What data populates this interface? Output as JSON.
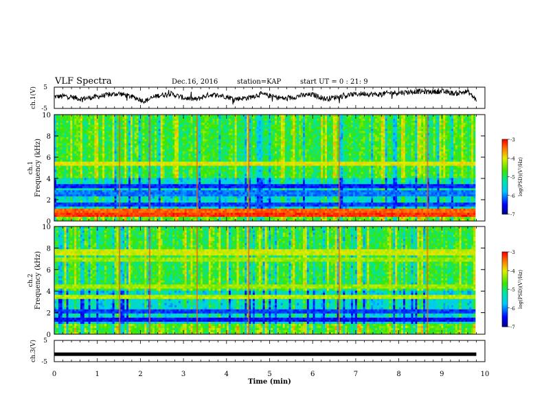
{
  "header": {
    "title": "VLF Spectra",
    "date": "Dec.16, 2016",
    "station": "station=KAP",
    "start": "start UT =  0 : 21: 9"
  },
  "chart_data": [
    {
      "type": "line",
      "panel": "ch1-waveform",
      "ylabel": "ch.1(V)",
      "ylim": [
        -5,
        5
      ],
      "yticks": [
        "5",
        "-5"
      ],
      "xlim": [
        0,
        10
      ],
      "x": [
        0,
        0.3,
        0.6,
        0.9,
        1.2,
        1.5,
        1.8,
        2.1,
        2.4,
        2.7,
        3.0,
        3.3,
        3.6,
        3.9,
        4.2,
        4.5,
        4.8,
        5.1,
        5.4,
        5.7,
        6.0,
        6.3,
        6.6,
        6.9,
        7.2,
        7.5,
        7.8,
        8.1,
        8.4,
        8.7,
        9.0,
        9.3,
        9.6,
        9.8
      ],
      "y": [
        0.5,
        0.8,
        -0.5,
        0.2,
        1.2,
        2.0,
        0.5,
        -1.5,
        1.0,
        2.0,
        0.0,
        -0.8,
        1.5,
        1.0,
        -0.5,
        0.0,
        1.8,
        0.5,
        -0.5,
        1.0,
        1.5,
        -0.5,
        0.5,
        1.5,
        2.0,
        1.5,
        2.3,
        2.5,
        3.0,
        2.8,
        3.0,
        2.0,
        3.0,
        -1.0
      ]
    },
    {
      "type": "heatmap",
      "panel": "ch1-spectrogram",
      "ylabel": "ch.1\nFrequency (kHz)",
      "xlim": [
        0,
        10
      ],
      "ylim": [
        0,
        10
      ],
      "yticks": [
        0,
        2,
        4,
        6,
        8,
        10
      ],
      "colorbar": {
        "label": "log(PSD)(V²/Hz)",
        "range": [
          -7,
          -3
        ],
        "ticks": [
          "-3",
          "-4",
          "-5",
          "-6",
          "-7"
        ]
      },
      "bands": [
        {
          "f_khz": 0.6,
          "level": -3.2
        },
        {
          "f_khz": 0.9,
          "level": -3.4
        },
        {
          "f_khz": 1.5,
          "level": -6.3
        },
        {
          "f_khz": 2.6,
          "level": -6.1
        },
        {
          "f_khz": 3.2,
          "level": -6.4
        },
        {
          "f_khz": 5.3,
          "level": -4.0
        }
      ]
    },
    {
      "type": "heatmap",
      "panel": "ch2-spectrogram",
      "ylabel": "ch.2\nFrequency (kHz)",
      "xlim": [
        0,
        10
      ],
      "ylim": [
        0,
        10
      ],
      "yticks": [
        0,
        2,
        4,
        6,
        8,
        10
      ],
      "colorbar": {
        "label": "log(PSD)(V²/Hz)",
        "range": [
          -7,
          -3
        ],
        "ticks": [
          "-3",
          "-4",
          "-5",
          "-6",
          "-7"
        ]
      },
      "bands": [
        {
          "f_khz": 1.4,
          "level": -6.5
        },
        {
          "f_khz": 2.1,
          "level": -6.3
        },
        {
          "f_khz": 3.5,
          "level": -4.2
        },
        {
          "f_khz": 4.5,
          "level": -4.3
        },
        {
          "f_khz": 6.9,
          "level": -4.3
        },
        {
          "f_khz": 7.6,
          "level": -4.1
        }
      ]
    },
    {
      "type": "line",
      "panel": "ch3-waveform",
      "ylabel": "ch.3(V)",
      "ylim": [
        -5,
        5
      ],
      "yticks": [
        "5",
        "-5"
      ],
      "xlim": [
        0,
        10
      ],
      "x": [
        0,
        9.8
      ],
      "y": [
        -1.5,
        -1.5
      ],
      "xlabel": "Time (min)",
      "xticks": [
        "0",
        "1",
        "2",
        "3",
        "4",
        "5",
        "6",
        "7",
        "8",
        "9",
        "10"
      ]
    }
  ]
}
